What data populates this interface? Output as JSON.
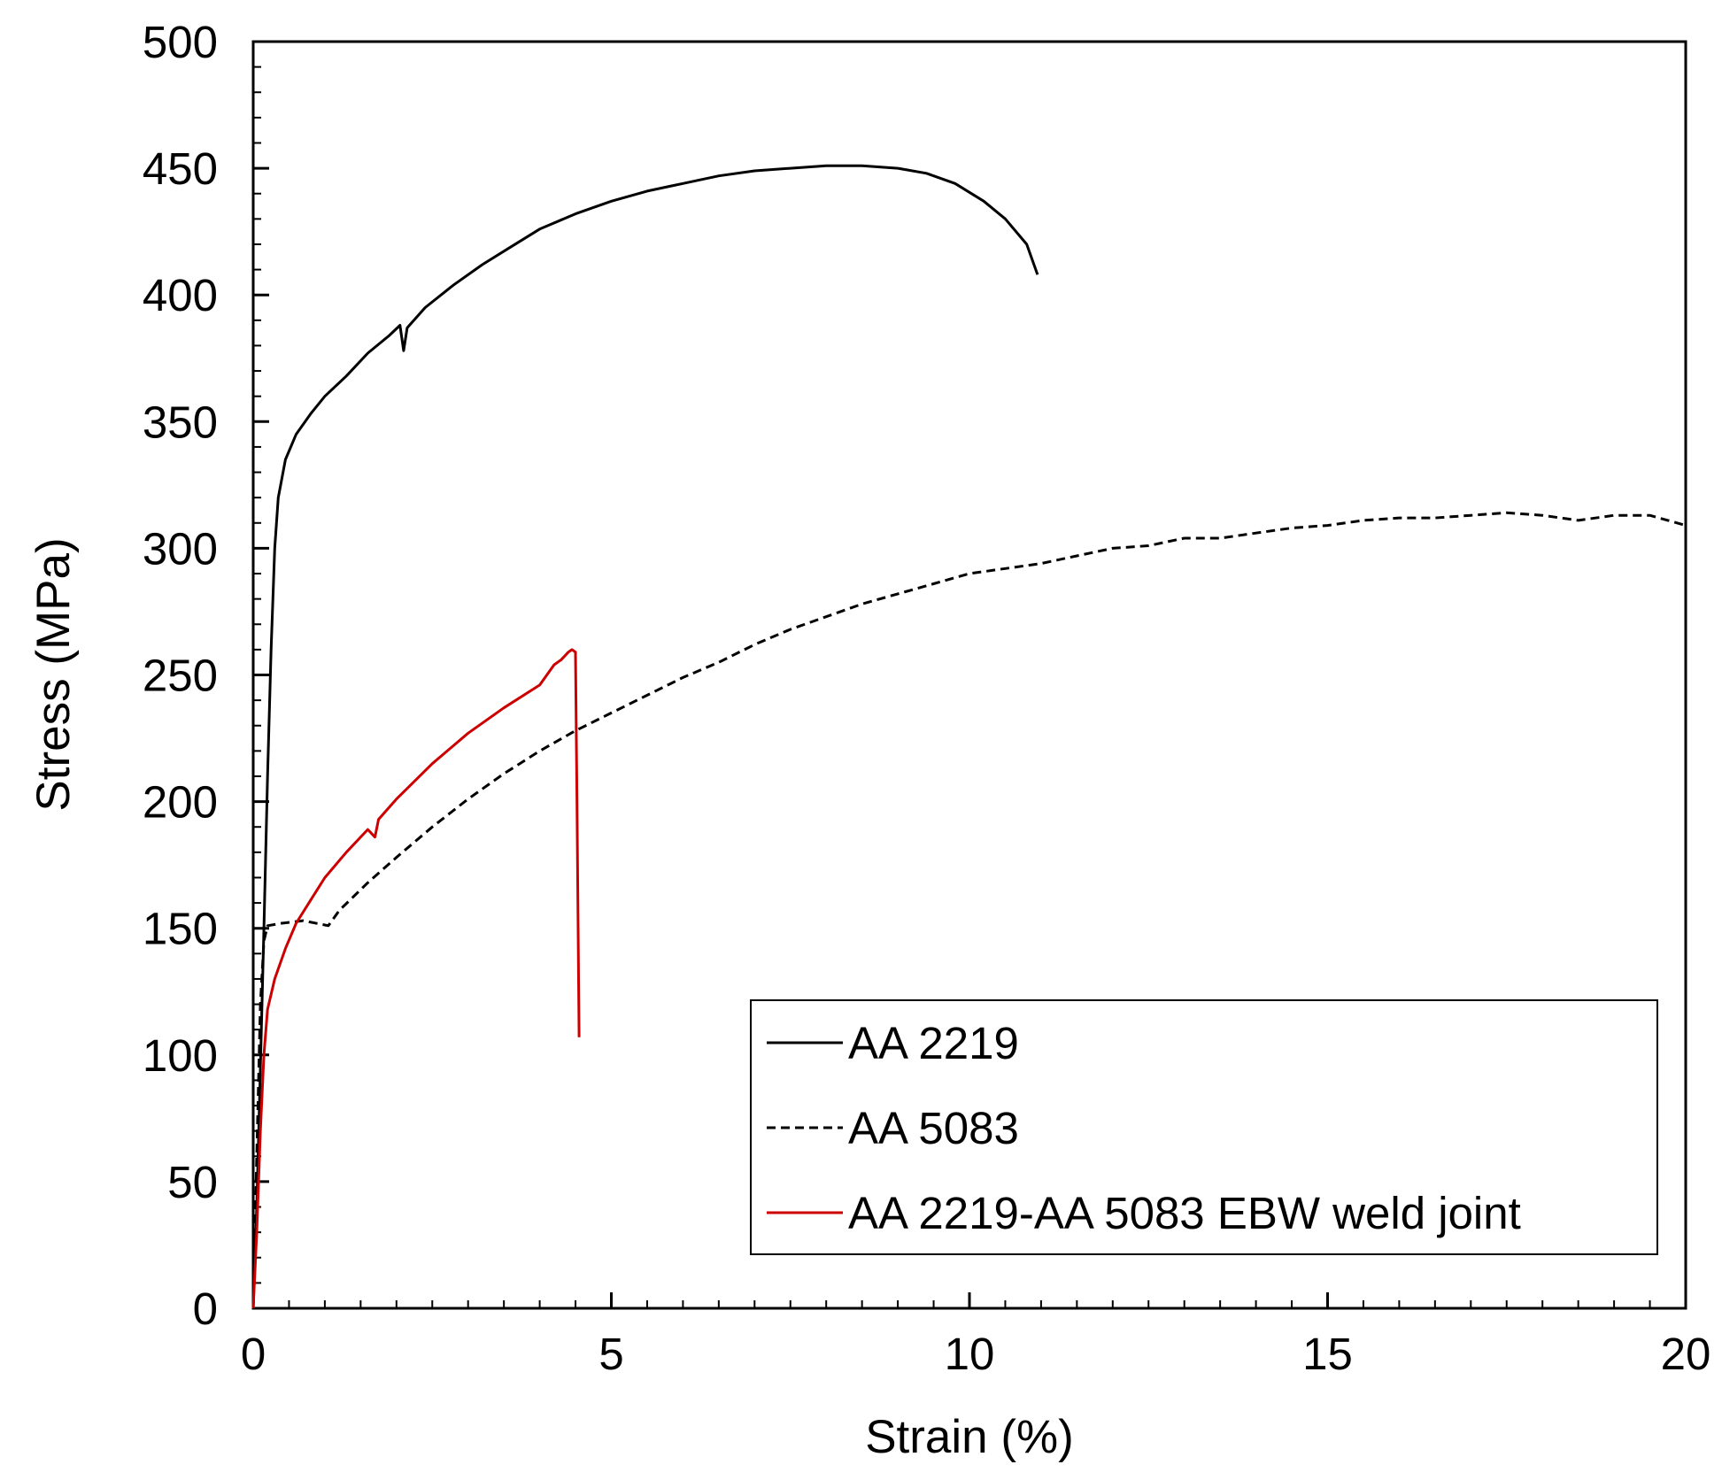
{
  "chart_data": {
    "type": "line",
    "title": "",
    "xlabel": "Strain (%)",
    "ylabel": "Stress (MPa)",
    "xlim": [
      0,
      20
    ],
    "ylim": [
      0,
      500
    ],
    "xticks": [
      0,
      5,
      10,
      15,
      20
    ],
    "yticks": [
      0,
      50,
      100,
      150,
      200,
      250,
      300,
      350,
      400,
      450,
      500
    ],
    "x_minor_step": 0.5,
    "y_minor_step": 10,
    "grid": false,
    "legend_position": "bottom-right",
    "series": [
      {
        "name": "AA 2219",
        "color": "#000000",
        "dash": "solid",
        "points": [
          [
            0,
            0
          ],
          [
            0.05,
            40
          ],
          [
            0.1,
            95
          ],
          [
            0.15,
            150
          ],
          [
            0.2,
            210
          ],
          [
            0.25,
            260
          ],
          [
            0.3,
            300
          ],
          [
            0.35,
            320
          ],
          [
            0.45,
            335
          ],
          [
            0.6,
            345
          ],
          [
            0.8,
            353
          ],
          [
            1.0,
            360
          ],
          [
            1.3,
            368
          ],
          [
            1.6,
            377
          ],
          [
            1.9,
            384
          ],
          [
            2.05,
            388
          ],
          [
            2.1,
            378
          ],
          [
            2.15,
            387
          ],
          [
            2.4,
            395
          ],
          [
            2.8,
            404
          ],
          [
            3.2,
            412
          ],
          [
            3.6,
            419
          ],
          [
            4.0,
            426
          ],
          [
            4.5,
            432
          ],
          [
            5.0,
            437
          ],
          [
            5.5,
            441
          ],
          [
            6.0,
            444
          ],
          [
            6.5,
            447
          ],
          [
            7.0,
            449
          ],
          [
            7.5,
            450
          ],
          [
            8.0,
            451
          ],
          [
            8.5,
            451
          ],
          [
            9.0,
            450
          ],
          [
            9.4,
            448
          ],
          [
            9.8,
            444
          ],
          [
            10.2,
            437
          ],
          [
            10.5,
            430
          ],
          [
            10.8,
            420
          ],
          [
            10.95,
            408
          ]
        ]
      },
      {
        "name": "AA 5083",
        "color": "#000000",
        "dash": "dashed",
        "points": [
          [
            0,
            0
          ],
          [
            0.05,
            60
          ],
          [
            0.1,
            120
          ],
          [
            0.15,
            145
          ],
          [
            0.2,
            151
          ],
          [
            0.4,
            152
          ],
          [
            0.7,
            153
          ],
          [
            1.05,
            151
          ],
          [
            1.2,
            157
          ],
          [
            1.6,
            168
          ],
          [
            2.0,
            178
          ],
          [
            2.5,
            190
          ],
          [
            3.0,
            201
          ],
          [
            3.5,
            211
          ],
          [
            4.0,
            220
          ],
          [
            4.5,
            228
          ],
          [
            5.0,
            235
          ],
          [
            5.5,
            242
          ],
          [
            6.0,
            249
          ],
          [
            6.5,
            255
          ],
          [
            7.0,
            262
          ],
          [
            7.5,
            268
          ],
          [
            8.0,
            273
          ],
          [
            8.5,
            278
          ],
          [
            9.0,
            282
          ],
          [
            9.5,
            286
          ],
          [
            10.0,
            290
          ],
          [
            10.5,
            292
          ],
          [
            11.0,
            294
          ],
          [
            11.5,
            297
          ],
          [
            12.0,
            300
          ],
          [
            12.5,
            301
          ],
          [
            13.0,
            304
          ],
          [
            13.5,
            304
          ],
          [
            14.0,
            306
          ],
          [
            14.5,
            308
          ],
          [
            15.0,
            309
          ],
          [
            15.5,
            311
          ],
          [
            16.0,
            312
          ],
          [
            16.5,
            312
          ],
          [
            17.0,
            313
          ],
          [
            17.5,
            314
          ],
          [
            18.0,
            313
          ],
          [
            18.5,
            311
          ],
          [
            19.0,
            313
          ],
          [
            19.5,
            313
          ],
          [
            20.0,
            309
          ]
        ]
      },
      {
        "name": "AA 2219-AA 5083 EBW weld joint",
        "color": "#cc0000",
        "dash": "solid",
        "points": [
          [
            0,
            0
          ],
          [
            0.05,
            30
          ],
          [
            0.1,
            70
          ],
          [
            0.15,
            100
          ],
          [
            0.2,
            118
          ],
          [
            0.3,
            130
          ],
          [
            0.45,
            142
          ],
          [
            0.6,
            152
          ],
          [
            0.8,
            161
          ],
          [
            1.0,
            170
          ],
          [
            1.3,
            180
          ],
          [
            1.6,
            189
          ],
          [
            1.7,
            186
          ],
          [
            1.75,
            193
          ],
          [
            2.0,
            201
          ],
          [
            2.5,
            215
          ],
          [
            3.0,
            227
          ],
          [
            3.5,
            237
          ],
          [
            4.0,
            246
          ],
          [
            4.2,
            254
          ],
          [
            4.3,
            256
          ],
          [
            4.4,
            259
          ],
          [
            4.45,
            260
          ],
          [
            4.5,
            259
          ],
          [
            4.52,
            200
          ],
          [
            4.55,
            107
          ]
        ]
      }
    ]
  }
}
